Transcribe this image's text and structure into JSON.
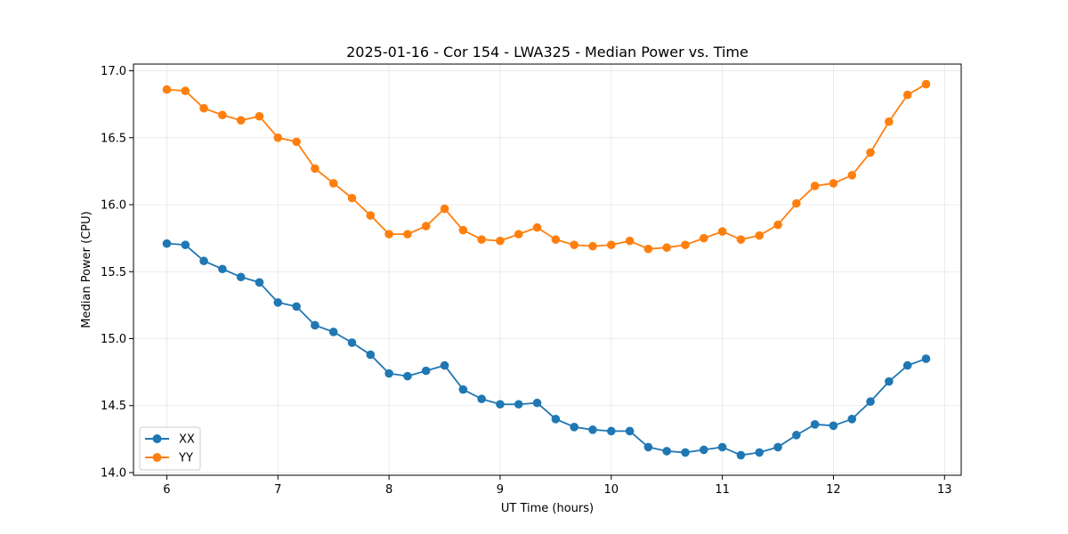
{
  "chart_data": {
    "type": "line",
    "title": "2025-01-16 - Cor 154 - LWA325 - Median Power vs. Time",
    "xlabel": "UT Time (hours)",
    "ylabel": "Median Power (CPU)",
    "xlim": [
      5.7,
      13.15
    ],
    "ylim": [
      13.98,
      17.05
    ],
    "xticks": [
      6,
      7,
      8,
      9,
      10,
      11,
      12,
      13
    ],
    "yticks": [
      14.0,
      14.5,
      15.0,
      15.5,
      16.0,
      16.5,
      17.0
    ],
    "ytick_labels": [
      "14.0",
      "14.5",
      "15.0",
      "15.5",
      "16.0",
      "16.5",
      "17.0"
    ],
    "grid": true,
    "legend_position": "bottom-left",
    "x": [
      6.0,
      6.1667,
      6.3333,
      6.5,
      6.6667,
      6.8333,
      7.0,
      7.1667,
      7.3333,
      7.5,
      7.6667,
      7.8333,
      8.0,
      8.1667,
      8.3333,
      8.5,
      8.6667,
      8.8333,
      9.0,
      9.1667,
      9.3333,
      9.5,
      9.6667,
      9.8333,
      10.0,
      10.1667,
      10.3333,
      10.5,
      10.6667,
      10.8333,
      11.0,
      11.1667,
      11.3333,
      11.5,
      11.6667,
      11.8333,
      12.0,
      12.1667,
      12.3333,
      12.5,
      12.6667,
      12.8333
    ],
    "series": [
      {
        "name": "XX",
        "color": "#1f77b4",
        "values": [
          15.71,
          15.7,
          15.58,
          15.52,
          15.46,
          15.42,
          15.27,
          15.24,
          15.1,
          15.05,
          14.97,
          14.88,
          14.74,
          14.72,
          14.76,
          14.8,
          14.62,
          14.55,
          14.51,
          14.51,
          14.52,
          14.4,
          14.34,
          14.32,
          14.31,
          14.31,
          14.19,
          14.16,
          14.15,
          14.17,
          14.19,
          14.13,
          14.15,
          14.19,
          14.28,
          14.36,
          14.35,
          14.4,
          14.53,
          14.68,
          14.8,
          14.85
        ]
      },
      {
        "name": "YY",
        "color": "#ff7f0e",
        "values": [
          16.86,
          16.85,
          16.72,
          16.67,
          16.63,
          16.66,
          16.5,
          16.47,
          16.27,
          16.16,
          16.05,
          15.92,
          15.78,
          15.78,
          15.84,
          15.97,
          15.81,
          15.74,
          15.73,
          15.78,
          15.83,
          15.74,
          15.7,
          15.69,
          15.7,
          15.73,
          15.67,
          15.68,
          15.7,
          15.75,
          15.8,
          15.74,
          15.77,
          15.85,
          16.01,
          16.14,
          16.16,
          16.22,
          16.39,
          16.62,
          16.82,
          16.9
        ]
      }
    ]
  }
}
